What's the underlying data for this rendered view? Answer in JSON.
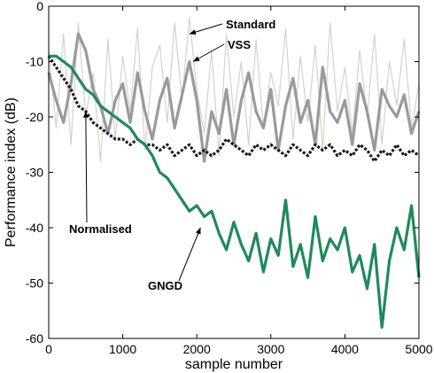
{
  "chart_data": {
    "type": "line",
    "title": "",
    "xlabel": "sample number",
    "ylabel": "Performance index (dB)",
    "xlim": [
      0,
      5000
    ],
    "ylim": [
      -60,
      0
    ],
    "xticks": [
      "0",
      "1000",
      "2000",
      "3000",
      "4000",
      "5000"
    ],
    "yticks": [
      "0",
      "-10",
      "-20",
      "-30",
      "-40",
      "-50",
      "-60"
    ],
    "grid": false,
    "legend": "none",
    "series": [
      {
        "name": "Standard",
        "color": "#d4d2cc",
        "x": [
          0,
          100,
          200,
          300,
          400,
          500,
          600,
          700,
          800,
          900,
          1000,
          1100,
          1200,
          1300,
          1400,
          1500,
          1600,
          1700,
          1800,
          1900,
          2000,
          2100,
          2200,
          2300,
          2400,
          2500,
          2600,
          2700,
          2800,
          2900,
          3000,
          3100,
          3200,
          3300,
          3400,
          3500,
          3600,
          3700,
          3800,
          3900,
          4000,
          4100,
          4200,
          4300,
          4400,
          4500,
          4600,
          4700,
          4800,
          4900,
          5000
        ],
        "y": [
          -8,
          -22,
          -5,
          -25,
          -3,
          -20,
          -12,
          -28,
          -6,
          -24,
          -9,
          -19,
          -4,
          -26,
          -11,
          -7,
          -21,
          -3,
          -17,
          -2,
          -15,
          -23,
          -8,
          -27,
          -5,
          -20,
          -10,
          -25,
          -6,
          -22,
          -12,
          -18,
          -4,
          -24,
          -9,
          -21,
          -7,
          -26,
          -3,
          -19,
          -11,
          -23,
          -8,
          -20,
          -5,
          -25,
          -10,
          -18,
          -6,
          -22,
          -14
        ]
      },
      {
        "name": "VSS",
        "color": "#9a9a9a",
        "x": [
          0,
          100,
          200,
          300,
          400,
          500,
          600,
          700,
          800,
          900,
          1000,
          1100,
          1200,
          1300,
          1400,
          1500,
          1600,
          1700,
          1800,
          1900,
          2000,
          2100,
          2200,
          2300,
          2400,
          2500,
          2600,
          2700,
          2800,
          2900,
          3000,
          3100,
          3200,
          3300,
          3400,
          3500,
          3600,
          3700,
          3800,
          3900,
          4000,
          4100,
          4200,
          4300,
          4400,
          4500,
          4600,
          4700,
          4800,
          4900,
          5000
        ],
        "y": [
          -12,
          -17,
          -21,
          -14,
          -5,
          -8,
          -15,
          -18,
          -23,
          -17,
          -14,
          -21,
          -12,
          -19,
          -24,
          -17,
          -13,
          -22,
          -16,
          -10,
          -17,
          -28,
          -19,
          -23,
          -15,
          -25,
          -17,
          -12,
          -19,
          -22,
          -15,
          -26,
          -18,
          -13,
          -21,
          -17,
          -25,
          -11,
          -19,
          -21,
          -17,
          -25,
          -14,
          -19,
          -26,
          -15,
          -18,
          -20,
          -16,
          -23,
          -19
        ]
      },
      {
        "name": "Normalised",
        "color": "#1a1a1a",
        "x": [
          0,
          100,
          200,
          300,
          400,
          500,
          600,
          700,
          800,
          900,
          1000,
          1100,
          1200,
          1300,
          1400,
          1500,
          1600,
          1700,
          1800,
          1900,
          2000,
          2100,
          2200,
          2300,
          2400,
          2500,
          2600,
          2700,
          2800,
          2900,
          3000,
          3100,
          3200,
          3300,
          3400,
          3500,
          3600,
          3700,
          3800,
          3900,
          4000,
          4100,
          4200,
          4300,
          4400,
          4500,
          4600,
          4700,
          4800,
          4900,
          5000
        ],
        "y": [
          -9,
          -11,
          -13,
          -15,
          -18,
          -19,
          -21,
          -22,
          -23,
          -24,
          -24,
          -25,
          -24,
          -25,
          -25,
          -26,
          -25,
          -27,
          -26,
          -25,
          -27,
          -26,
          -27,
          -26,
          -24,
          -25,
          -26,
          -27,
          -25,
          -26,
          -25,
          -26,
          -27,
          -25,
          -26,
          -27,
          -25,
          -26,
          -25,
          -27,
          -26,
          -27,
          -25,
          -26,
          -28,
          -26,
          -27,
          -25,
          -27,
          -26,
          -27
        ]
      },
      {
        "name": "GNGD",
        "color": "#1e8a5a",
        "x": [
          0,
          100,
          200,
          300,
          400,
          500,
          600,
          700,
          800,
          900,
          1000,
          1100,
          1200,
          1300,
          1400,
          1500,
          1600,
          1700,
          1800,
          1900,
          2000,
          2100,
          2200,
          2300,
          2400,
          2500,
          2600,
          2700,
          2800,
          2900,
          3000,
          3100,
          3200,
          3300,
          3400,
          3500,
          3600,
          3700,
          3800,
          3900,
          4000,
          4100,
          4200,
          4300,
          4400,
          4500,
          4600,
          4700,
          4800,
          4900,
          5000
        ],
        "y": [
          -9,
          -9,
          -10,
          -11,
          -13,
          -15,
          -16,
          -18,
          -19,
          -20,
          -21,
          -22,
          -24,
          -25,
          -27,
          -30,
          -31,
          -33,
          -35,
          -37,
          -36,
          -38,
          -37,
          -41,
          -44,
          -39,
          -43,
          -46,
          -41,
          -48,
          -42,
          -45,
          -35,
          -47,
          -43,
          -49,
          -38,
          -46,
          -42,
          -44,
          -40,
          -48,
          -45,
          -51,
          -43,
          -58,
          -46,
          -40,
          -44,
          -36,
          -49
        ]
      }
    ],
    "annotations": [
      {
        "text": "Standard",
        "target_x": 1900,
        "target_y": -5
      },
      {
        "text": "VSS",
        "target_x": 1950,
        "target_y": -10
      },
      {
        "text": "Normalised",
        "target_x": 500,
        "target_y": -19
      },
      {
        "text": "GNGD",
        "target_x": 2050,
        "target_y": -40
      }
    ]
  }
}
